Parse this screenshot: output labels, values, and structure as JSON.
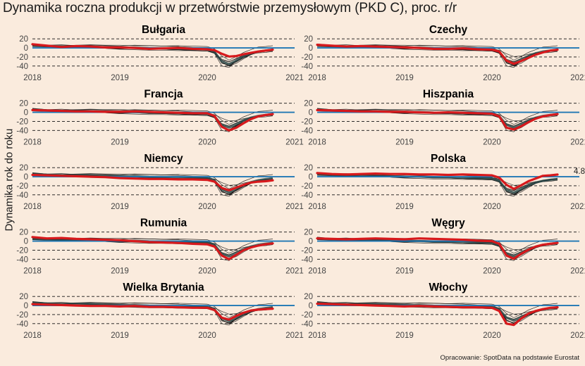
{
  "title": "Dynamika roczna produkcji w przetwórstwie przemysłowym (PKD C), proc. r/r",
  "ylabel": "Dynamika rok do roku",
  "caption": "Opracowanie: SpotData na podstawie Eurostat",
  "colors": {
    "highlight": "#D7191C",
    "others": "#2F4F4F",
    "zero_line": "#1F77B4",
    "background": "#FAEBDD"
  },
  "chart_data": {
    "type": "line",
    "facets": [
      "Bułgaria",
      "Czechy",
      "Francja",
      "Hiszpania",
      "Niemcy",
      "Polska",
      "Rumunia",
      "Węgry",
      "Wielka Brytania",
      "Włochy"
    ],
    "ylim": [
      -45,
      25
    ],
    "yticks": [
      20,
      0,
      -20,
      -40
    ],
    "dashed_gridlines": [
      20,
      -20,
      -40
    ],
    "reference_line": 0,
    "xlim": [
      2018,
      2021
    ],
    "xticks": [
      2018,
      2019,
      2020,
      2021
    ],
    "x": [
      2018.0,
      2018.167,
      2018.333,
      2018.5,
      2018.667,
      2018.833,
      2019.0,
      2019.167,
      2019.333,
      2019.5,
      2019.667,
      2019.833,
      2020.0,
      2020.083,
      2020.167,
      2020.25,
      2020.333,
      2020.417,
      2020.5,
      2020.583,
      2020.667,
      2020.75
    ],
    "series": [
      {
        "name": "Bułgaria",
        "values": [
          8,
          5,
          2,
          4,
          3,
          1,
          1,
          0,
          -2,
          -1,
          0,
          -2,
          -3,
          -5,
          -13,
          -19,
          -18,
          -14,
          -11,
          -8,
          -6,
          -4
        ]
      },
      {
        "name": "Czechy",
        "values": [
          7,
          5,
          3,
          4,
          3,
          2,
          1,
          0,
          -2,
          -2,
          -1,
          -3,
          -4,
          -8,
          -28,
          -35,
          -29,
          -22,
          -15,
          -10,
          -6,
          -4
        ]
      },
      {
        "name": "Francja",
        "values": [
          5,
          4,
          3,
          2,
          2,
          1,
          1,
          2,
          1,
          0,
          -1,
          -2,
          -2,
          -8,
          -32,
          -40,
          -34,
          -24,
          -15,
          -9,
          -6,
          -4
        ]
      },
      {
        "name": "Hiszpania",
        "values": [
          5,
          4,
          3,
          2,
          2,
          1,
          1,
          0,
          -1,
          0,
          -1,
          -2,
          -3,
          -9,
          -34,
          -38,
          -31,
          -22,
          -14,
          -9,
          -6,
          -4
        ]
      },
      {
        "name": "Niemcy",
        "values": [
          4,
          3,
          2,
          1,
          0,
          -1,
          -3,
          -4,
          -5,
          -5,
          -6,
          -6,
          -7,
          -11,
          -25,
          -30,
          -24,
          -18,
          -13,
          -11,
          -10,
          -8
        ]
      },
      {
        "name": "Polska",
        "values": [
          8,
          6,
          5,
          6,
          7,
          6,
          6,
          5,
          5,
          4,
          5,
          4,
          3,
          -2,
          -18,
          -27,
          -19,
          -10,
          -4,
          2,
          3,
          4.8
        ]
      },
      {
        "name": "Rumunia",
        "values": [
          9,
          6,
          7,
          5,
          4,
          3,
          2,
          0,
          -2,
          -3,
          -4,
          -6,
          -7,
          -12,
          -32,
          -40,
          -30,
          -20,
          -14,
          -10,
          -7,
          -5
        ]
      },
      {
        "name": "Węgry",
        "values": [
          6,
          5,
          4,
          5,
          6,
          5,
          4,
          6,
          5,
          4,
          3,
          1,
          0,
          -6,
          -32,
          -39,
          -28,
          -19,
          -12,
          -8,
          -6,
          -4
        ]
      },
      {
        "name": "Wielka Brytania",
        "values": [
          3,
          2,
          1,
          0,
          -1,
          -1,
          -2,
          -1,
          -3,
          -3,
          -4,
          -5,
          -5,
          -10,
          -27,
          -31,
          -23,
          -16,
          -11,
          -9,
          -8,
          -7
        ]
      },
      {
        "name": "Włochy",
        "values": [
          4,
          3,
          2,
          1,
          0,
          -1,
          -2,
          -1,
          -2,
          -3,
          -4,
          -4,
          -5,
          -12,
          -40,
          -43,
          -29,
          -18,
          -12,
          -8,
          -5,
          -4
        ]
      }
    ],
    "end_label": {
      "facet": "Polska",
      "value": "4.8"
    }
  }
}
